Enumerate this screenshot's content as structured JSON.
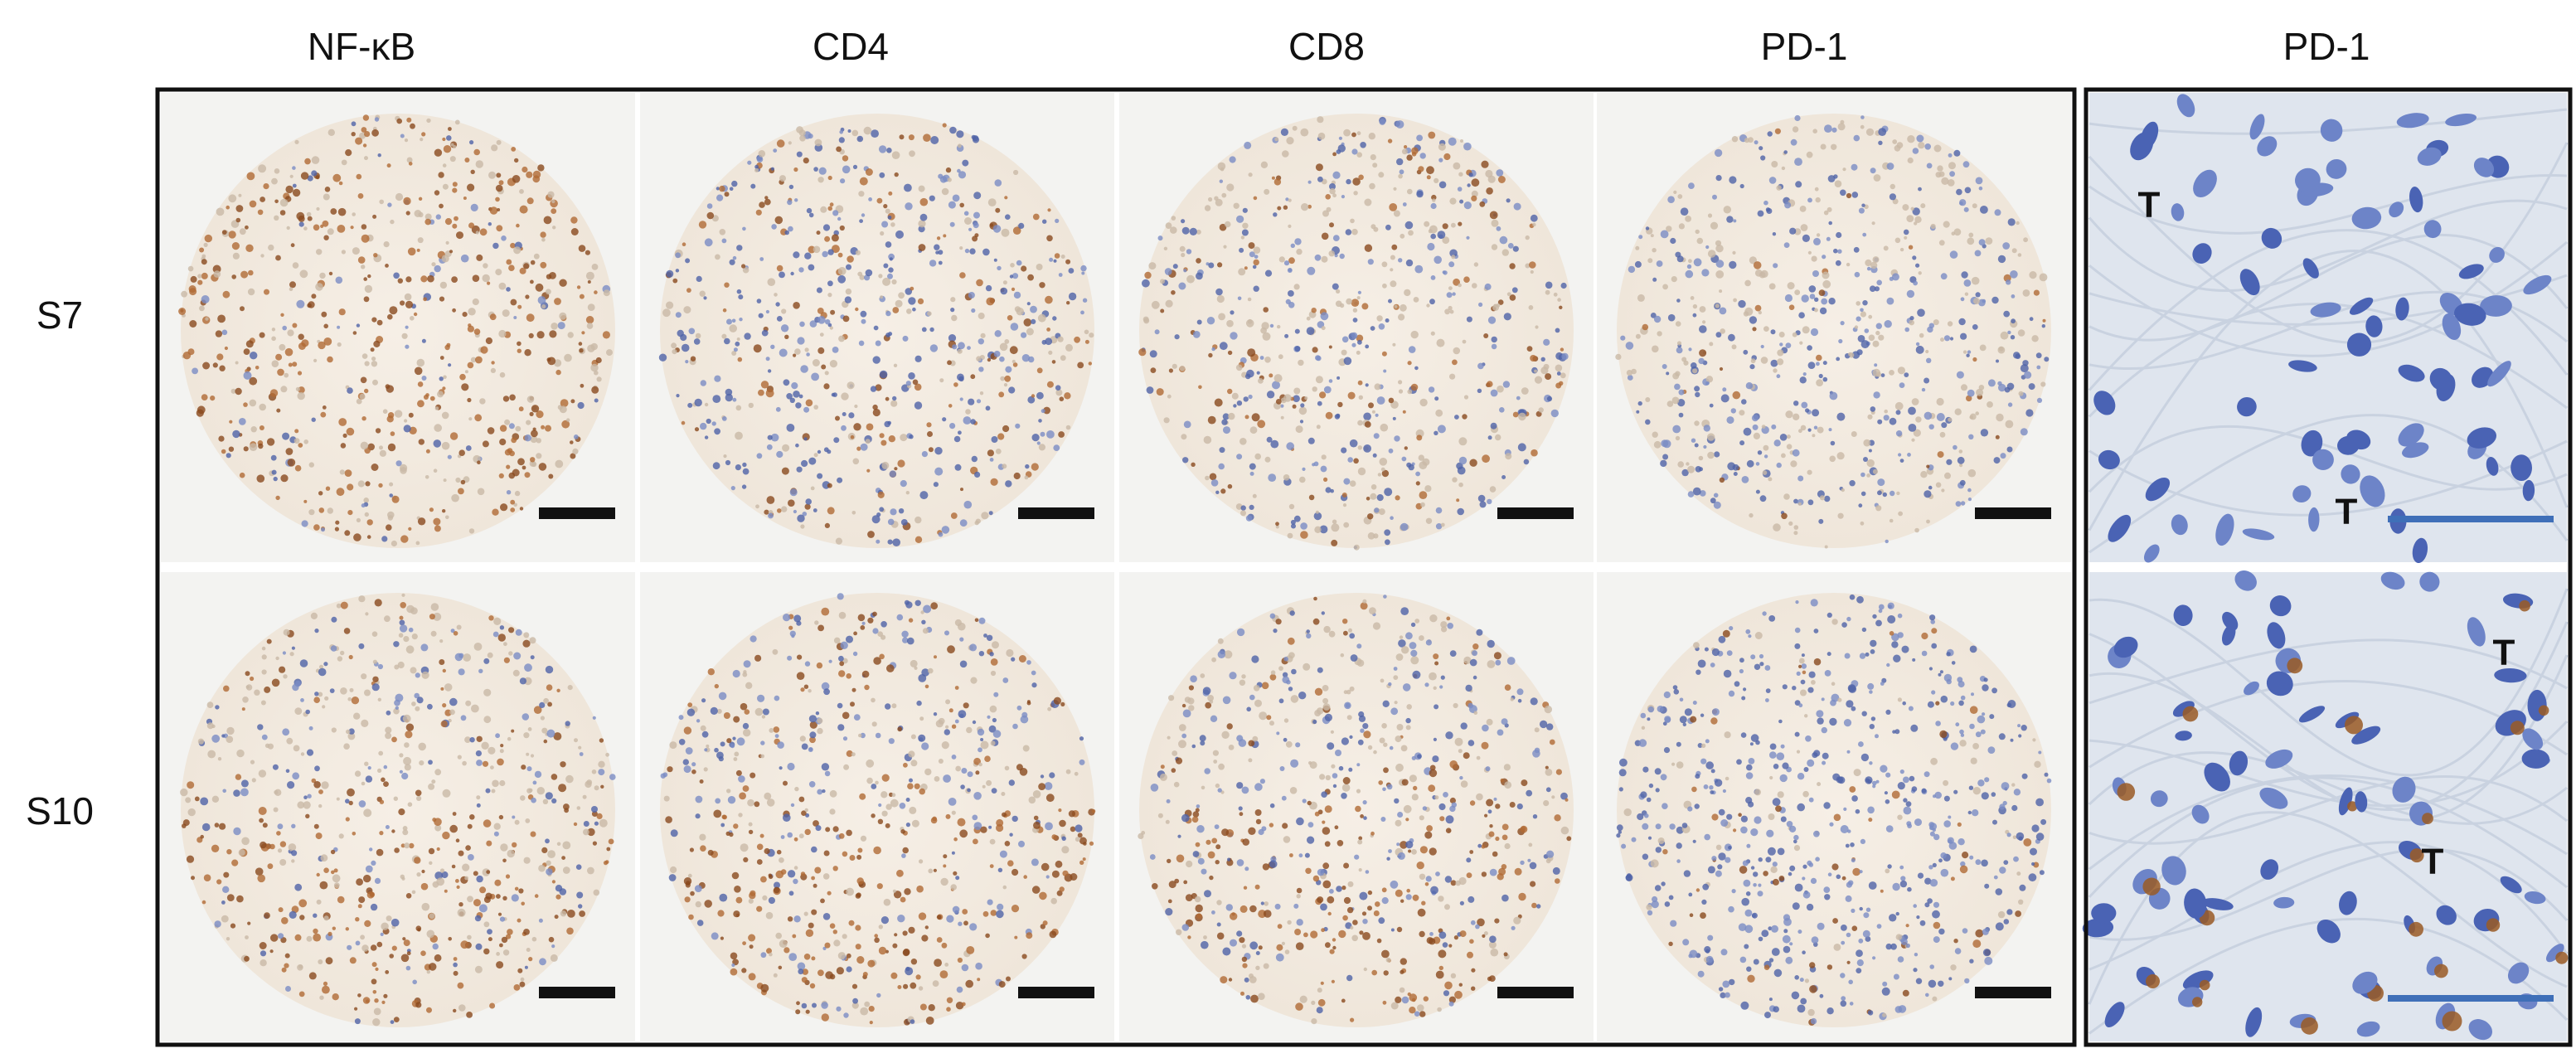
{
  "column_headers": [
    "NF-κB",
    "CD4",
    "CD8",
    "PD-1",
    "PD-1"
  ],
  "row_labels": [
    "S7",
    "S10"
  ],
  "annotations": {
    "top": [
      "T",
      "T"
    ],
    "bottom": [
      "T",
      "T"
    ]
  }
}
